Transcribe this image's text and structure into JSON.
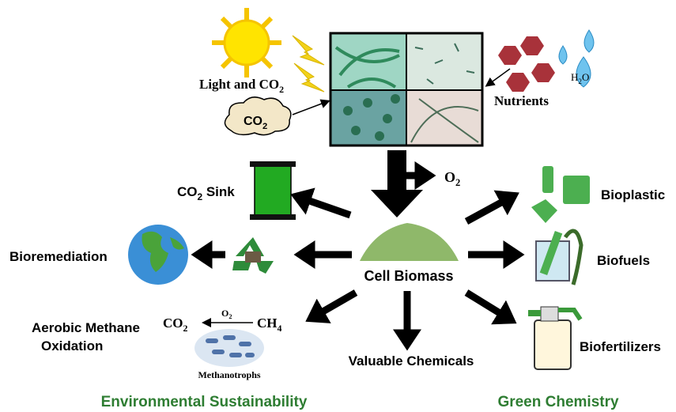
{
  "inputs": {
    "light": {
      "text": "Light and CO",
      "sub": "2"
    },
    "cloud": {
      "text": "CO",
      "sub": "2"
    },
    "nutrients": "Nutrients",
    "water": {
      "text": "H",
      "sub": "2",
      "tail": "O"
    }
  },
  "oxygen": {
    "text": "O",
    "sub": "2"
  },
  "center": "Cell Biomass",
  "outputs": {
    "sink": {
      "text": "CO",
      "sub": "2",
      "tail": " Sink"
    },
    "bioremediation": "Bioremediation",
    "methane": {
      "line1": "Aerobic Methane",
      "line2": "Oxidation",
      "product": {
        "text": "CO",
        "sub": "2"
      },
      "oxidant": {
        "text": "O",
        "sub": "2"
      },
      "reactant": {
        "text": "CH",
        "sub": "4"
      },
      "organism": "Methanotrophs"
    },
    "chemicals": "Valuable Chemicals",
    "bioplastic": "Bioplastic",
    "biofuels": "Biofuels",
    "biofertilizers": "Biofertilizers"
  },
  "footer": {
    "left": "Environmental Sustainability",
    "right": "Green Chemistry"
  }
}
